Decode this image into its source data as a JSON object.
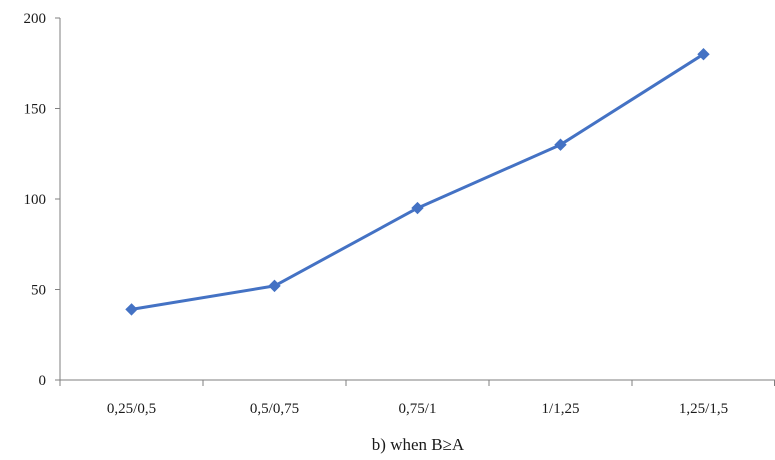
{
  "chart_data": {
    "type": "line",
    "categories": [
      "0,25/0,5",
      "0,5/0,75",
      "0,75/1",
      "1/1,25",
      "1,25/1,5"
    ],
    "series": [
      {
        "values": [
          39,
          52,
          95,
          130,
          180
        ]
      }
    ],
    "ylim": [
      0,
      200
    ],
    "yticks": [
      0,
      50,
      100,
      150,
      200
    ],
    "xlabel": "b) when B≥A",
    "ylabel": "",
    "title": "",
    "grid": false,
    "legend": "none",
    "line_color": "#4472C4",
    "marker": "diamond"
  }
}
